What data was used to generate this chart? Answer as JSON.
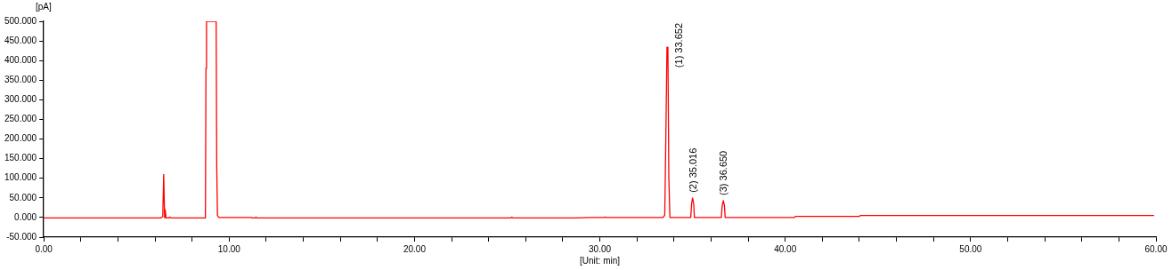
{
  "chart_data": {
    "type": "line",
    "xlabel": "[Unit: min]",
    "ylabel": "[pA]",
    "series": [
      {
        "color": "#ff0000",
        "x": [
          0,
          6.3,
          6.42,
          6.47,
          6.52,
          6.55,
          6.6,
          6.75,
          6.8,
          6.85,
          8.72,
          8.75,
          8.78,
          9.3,
          9.33,
          9.37,
          9.45,
          11.2,
          11.25,
          11.4,
          11.45,
          11.5,
          25.2,
          25.25,
          25.3,
          28.7,
          29.5,
          30.2,
          30.3,
          30.35,
          33.4,
          33.5,
          33.55,
          33.62,
          33.67,
          33.72,
          33.78,
          34.9,
          34.95,
          35.0,
          35.06,
          35.1,
          36.55,
          36.6,
          36.66,
          36.72,
          36.76,
          40.5,
          40.55,
          44.0,
          44.05,
          59.9
        ],
        "values": [
          -1,
          -1,
          2,
          110,
          -1,
          20,
          -1,
          -1,
          1,
          -1,
          -1,
          380,
          500,
          500,
          135,
          5,
          0,
          0,
          -1,
          -1,
          1,
          -1,
          -1,
          1,
          -1,
          -1,
          0,
          0,
          1,
          0,
          0,
          6,
          170,
          434,
          434,
          100,
          0,
          0,
          35,
          50,
          35,
          0,
          0,
          30,
          43,
          30,
          0,
          0,
          3,
          3,
          5,
          5
        ]
      }
    ],
    "annotations": [
      {
        "text": "(1) 33.652",
        "x": 33.652,
        "y": 434
      },
      {
        "text": "(2) 35.016",
        "x": 35.016,
        "y": 50
      },
      {
        "text": "(3) 36.650",
        "x": 36.65,
        "y": 43
      }
    ],
    "xlim": [
      0,
      60
    ],
    "xticks": [
      {
        "value": 0,
        "label": "0.00"
      },
      {
        "value": 2,
        "label": null
      },
      {
        "value": 4,
        "label": null
      },
      {
        "value": 6,
        "label": null
      },
      {
        "value": 8,
        "label": null
      },
      {
        "value": 10,
        "label": "10.00"
      },
      {
        "value": 12,
        "label": null
      },
      {
        "value": 14,
        "label": null
      },
      {
        "value": 16,
        "label": null
      },
      {
        "value": 18,
        "label": null
      },
      {
        "value": 20,
        "label": "20.00"
      },
      {
        "value": 22,
        "label": null
      },
      {
        "value": 24,
        "label": null
      },
      {
        "value": 26,
        "label": null
      },
      {
        "value": 28,
        "label": null
      },
      {
        "value": 30,
        "label": "30.00"
      },
      {
        "value": 32,
        "label": null
      },
      {
        "value": 34,
        "label": null
      },
      {
        "value": 36,
        "label": null
      },
      {
        "value": 38,
        "label": null
      },
      {
        "value": 40,
        "label": "40.00"
      },
      {
        "value": 42,
        "label": null
      },
      {
        "value": 44,
        "label": null
      },
      {
        "value": 46,
        "label": null
      },
      {
        "value": 48,
        "label": null
      },
      {
        "value": 50,
        "label": "50.00"
      },
      {
        "value": 52,
        "label": null
      },
      {
        "value": 54,
        "label": null
      },
      {
        "value": 56,
        "label": null
      },
      {
        "value": 58,
        "label": null
      },
      {
        "value": 60,
        "label": "60.00"
      }
    ],
    "ylim": [
      -50,
      500
    ],
    "yticks": [
      {
        "value": -50,
        "label": "-50.000"
      },
      {
        "value": 0,
        "label": "0.000"
      },
      {
        "value": 50,
        "label": "50.000"
      },
      {
        "value": 100,
        "label": "100.000"
      },
      {
        "value": 150,
        "label": "150.000"
      },
      {
        "value": 200,
        "label": "200.000"
      },
      {
        "value": 250,
        "label": "250.000"
      },
      {
        "value": 300,
        "label": "300.000"
      },
      {
        "value": 350,
        "label": "350.000"
      },
      {
        "value": 400,
        "label": "400.000"
      },
      {
        "value": 450,
        "label": "450.000"
      },
      {
        "value": 500,
        "label": "500.000"
      }
    ],
    "grid": false,
    "legend": false,
    "marker": "none",
    "line_style": "solid"
  }
}
